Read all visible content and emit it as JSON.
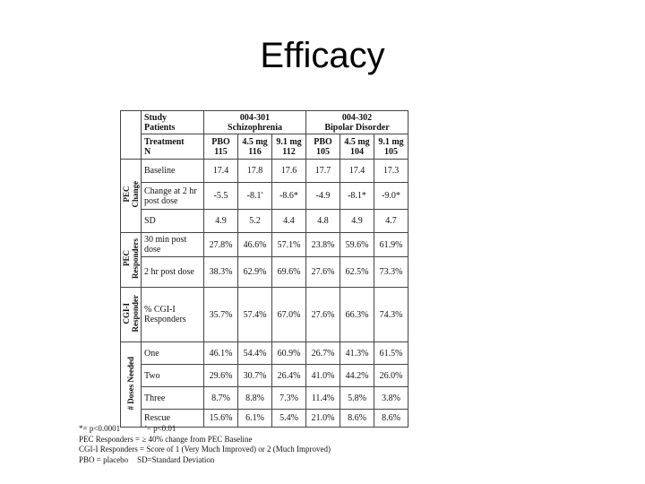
{
  "slide": {
    "title": "Efficacy"
  },
  "header": {
    "study_label": "Study",
    "patients_label": "Patients",
    "treatment_label": "Treatment",
    "n_label": "N",
    "study1": "004-301",
    "patients1": "Schizophrenia",
    "study2": "004-302",
    "patients2": "Bipolar Disorder",
    "treatments": [
      "PBO",
      "4.5 mg",
      "9.1 mg",
      "PBO",
      "4.5 mg",
      "9.1 mg"
    ],
    "n_values": [
      "115",
      "116",
      "112",
      "105",
      "104",
      "105"
    ]
  },
  "groups": {
    "pec_change": "PEC\nChange",
    "pec_responders": "PEC\nResponders",
    "cgi_responder": "CGI-I\nResponder",
    "doses_needed": "# Doses Needed"
  },
  "rows": [
    {
      "label": "Baseline",
      "values": [
        "17.4",
        "17.8",
        "17.6",
        "17.7",
        "17.4",
        "17.3"
      ]
    },
    {
      "label": "Change at 2 hr post dose",
      "values": [
        "-5.5",
        "-8.1'",
        "-8.6*",
        "-4.9",
        "-8.1*",
        "-9.0*"
      ]
    },
    {
      "label": "SD",
      "values": [
        "4.9",
        "5.2",
        "4.4",
        "4.8",
        "4.9",
        "4.7"
      ]
    },
    {
      "label": "30 min post dose",
      "values": [
        "27.8%",
        "46.6%",
        "57.1%",
        "23.8%",
        "59.6%",
        "61.9%"
      ]
    },
    {
      "label": "2 hr post dose",
      "values": [
        "38.3%",
        "62.9%",
        "69.6%",
        "27.6%",
        "62.5%",
        "73.3%"
      ]
    },
    {
      "label": "% CGI-I Responders",
      "values": [
        "35.7%",
        "57.4%",
        "67.0%",
        "27.6%",
        "66.3%",
        "74.3%"
      ]
    },
    {
      "label": "One",
      "values": [
        "46.1%",
        "54.4%",
        "60.9%",
        "26.7%",
        "41.3%",
        "61.5%"
      ]
    },
    {
      "label": "Two",
      "values": [
        "29.6%",
        "30.7%",
        "26.4%",
        "41.0%",
        "44.2%",
        "26.0%"
      ]
    },
    {
      "label": "Three",
      "values": [
        "8.7%",
        "8.8%",
        "7.3%",
        "11.4%",
        "5.8%",
        "3.8%"
      ]
    },
    {
      "label": "Rescue",
      "values": [
        "15.6%",
        "6.1%",
        "5.4%",
        "21.0%",
        "8.6%",
        "8.6%"
      ]
    }
  ],
  "footnotes": {
    "line1a": "*= p<0.0001",
    "line1b": "'= p<0.01",
    "line2": "PEC Responders = ≥ 40% change from PEC Baseline",
    "line3": "CGI-I Responders = Score of 1 (Very Much Improved) or 2 (Much Improved)",
    "line4a": "PBO = placebo",
    "line4b": "SD=Standard Deviation"
  }
}
